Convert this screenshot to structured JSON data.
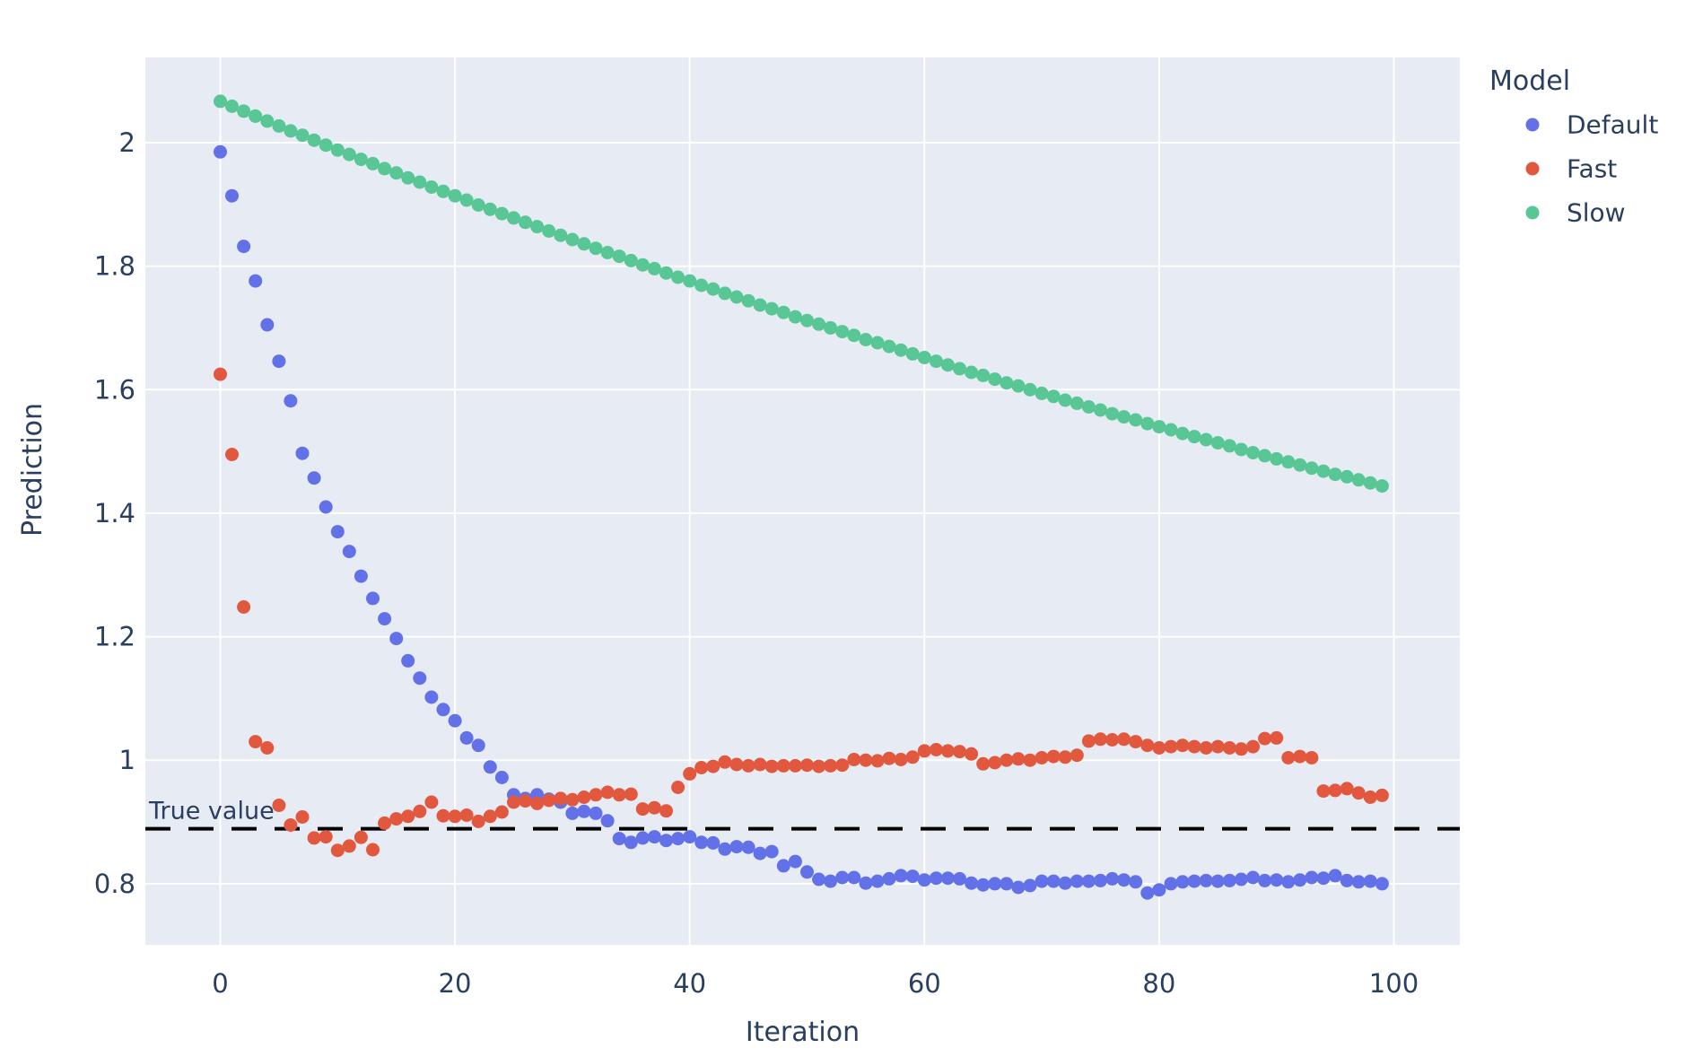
{
  "figure": {
    "background_color": "#ffffff",
    "plot_background_color": "#e6ebf4",
    "gridline_color": "#ffffff",
    "text_color": "#2a3f5f",
    "annotation": {
      "label": "True value"
    },
    "legend": {
      "title": "Model",
      "items": [
        {
          "label": "Default",
          "color": "#6371e8"
        },
        {
          "label": "Fast",
          "color": "#e1583f"
        },
        {
          "label": "Slow",
          "color": "#58c695"
        }
      ]
    }
  },
  "chart_data": {
    "type": "scatter",
    "title": "",
    "xlabel": "Iteration",
    "ylabel": "Prediction",
    "xlim": [
      -6.38,
      105.62
    ],
    "ylim": [
      0.701,
      2.138
    ],
    "grid": true,
    "legend_position": "top-right",
    "x_ticks": [
      0,
      20,
      40,
      60,
      80,
      100
    ],
    "x_tick_labels": [
      "0",
      "20",
      "40",
      "60",
      "80",
      "100"
    ],
    "y_ticks": [
      0.8,
      1,
      1.2,
      1.4,
      1.6,
      1.8,
      2
    ],
    "y_tick_labels": [
      "0.8",
      "1",
      "1.2",
      "1.4",
      "1.6",
      "1.8",
      "2"
    ],
    "reference_line": {
      "y": 0.889,
      "label": "True value",
      "style": "dashed",
      "color": "#000000"
    },
    "x": [
      0,
      1,
      2,
      3,
      4,
      5,
      6,
      7,
      8,
      9,
      10,
      11,
      12,
      13,
      14,
      15,
      16,
      17,
      18,
      19,
      20,
      21,
      22,
      23,
      24,
      25,
      26,
      27,
      28,
      29,
      30,
      31,
      32,
      33,
      34,
      35,
      36,
      37,
      38,
      39,
      40,
      41,
      42,
      43,
      44,
      45,
      46,
      47,
      48,
      49,
      50,
      51,
      52,
      53,
      54,
      55,
      56,
      57,
      58,
      59,
      60,
      61,
      62,
      63,
      64,
      65,
      66,
      67,
      68,
      69,
      70,
      71,
      72,
      73,
      74,
      75,
      76,
      77,
      78,
      79,
      80,
      81,
      82,
      83,
      84,
      85,
      86,
      87,
      88,
      89,
      90,
      91,
      92,
      93,
      94,
      95,
      96,
      97,
      98,
      99
    ],
    "series": [
      {
        "name": "Default",
        "color": "#6371e8",
        "values": [
          1.985,
          1.914,
          1.832,
          1.776,
          1.705,
          1.646,
          1.582,
          1.497,
          1.457,
          1.41,
          1.37,
          1.338,
          1.298,
          1.262,
          1.229,
          1.197,
          1.161,
          1.133,
          1.102,
          1.082,
          1.064,
          1.036,
          1.024,
          0.989,
          0.972,
          0.944,
          0.938,
          0.944,
          0.937,
          0.932,
          0.914,
          0.917,
          0.914,
          0.902,
          0.873,
          0.867,
          0.874,
          0.876,
          0.87,
          0.873,
          0.876,
          0.867,
          0.866,
          0.856,
          0.86,
          0.859,
          0.849,
          0.852,
          0.829,
          0.836,
          0.819,
          0.807,
          0.804,
          0.81,
          0.81,
          0.801,
          0.804,
          0.808,
          0.813,
          0.812,
          0.806,
          0.809,
          0.809,
          0.808,
          0.801,
          0.798,
          0.8,
          0.8,
          0.794,
          0.797,
          0.804,
          0.804,
          0.801,
          0.804,
          0.804,
          0.805,
          0.808,
          0.806,
          0.803,
          0.785,
          0.79,
          0.8,
          0.803,
          0.804,
          0.805,
          0.804,
          0.805,
          0.807,
          0.81,
          0.805,
          0.806,
          0.803,
          0.806,
          0.81,
          0.809,
          0.813,
          0.805,
          0.803,
          0.804,
          0.8
        ]
      },
      {
        "name": "Fast",
        "color": "#e1583f",
        "values": [
          1.625,
          1.495,
          1.248,
          1.03,
          1.02,
          0.927,
          0.895,
          0.908,
          0.874,
          0.876,
          0.854,
          0.861,
          0.875,
          0.855,
          0.898,
          0.905,
          0.909,
          0.917,
          0.932,
          0.91,
          0.909,
          0.911,
          0.901,
          0.909,
          0.916,
          0.932,
          0.934,
          0.93,
          0.935,
          0.938,
          0.936,
          0.94,
          0.944,
          0.948,
          0.944,
          0.945,
          0.921,
          0.923,
          0.918,
          0.956,
          0.978,
          0.988,
          0.99,
          0.997,
          0.993,
          0.991,
          0.993,
          0.99,
          0.991,
          0.991,
          0.992,
          0.99,
          0.991,
          0.992,
          1.001,
          1.0,
          0.999,
          1.003,
          1.001,
          1.005,
          1.015,
          1.017,
          1.015,
          1.014,
          1.01,
          0.994,
          0.996,
          1.0,
          1.002,
          1.0,
          1.004,
          1.006,
          1.005,
          1.008,
          1.031,
          1.034,
          1.033,
          1.034,
          1.03,
          1.024,
          1.02,
          1.022,
          1.024,
          1.022,
          1.02,
          1.022,
          1.02,
          1.018,
          1.022,
          1.035,
          1.036,
          1.004,
          1.006,
          1.004,
          0.95,
          0.951,
          0.954,
          0.947,
          0.94,
          0.943
        ]
      },
      {
        "name": "Slow",
        "color": "#58c695",
        "values": [
          2.067,
          2.059,
          2.051,
          2.043,
          2.035,
          2.027,
          2.019,
          2.012,
          2.004,
          1.996,
          1.988,
          1.981,
          1.973,
          1.966,
          1.958,
          1.951,
          1.943,
          1.936,
          1.928,
          1.921,
          1.914,
          1.907,
          1.899,
          1.892,
          1.885,
          1.878,
          1.871,
          1.864,
          1.857,
          1.85,
          1.843,
          1.836,
          1.829,
          1.822,
          1.816,
          1.809,
          1.802,
          1.796,
          1.789,
          1.782,
          1.776,
          1.769,
          1.763,
          1.756,
          1.75,
          1.744,
          1.737,
          1.731,
          1.725,
          1.718,
          1.712,
          1.706,
          1.7,
          1.694,
          1.688,
          1.681,
          1.676,
          1.67,
          1.664,
          1.658,
          1.652,
          1.646,
          1.64,
          1.634,
          1.628,
          1.623,
          1.617,
          1.611,
          1.606,
          1.6,
          1.594,
          1.589,
          1.583,
          1.578,
          1.572,
          1.567,
          1.561,
          1.556,
          1.551,
          1.545,
          1.54,
          1.535,
          1.529,
          1.524,
          1.519,
          1.514,
          1.509,
          1.503,
          1.498,
          1.493,
          1.488,
          1.483,
          1.478,
          1.473,
          1.468,
          1.463,
          1.459,
          1.454,
          1.449,
          1.444
        ]
      }
    ]
  }
}
